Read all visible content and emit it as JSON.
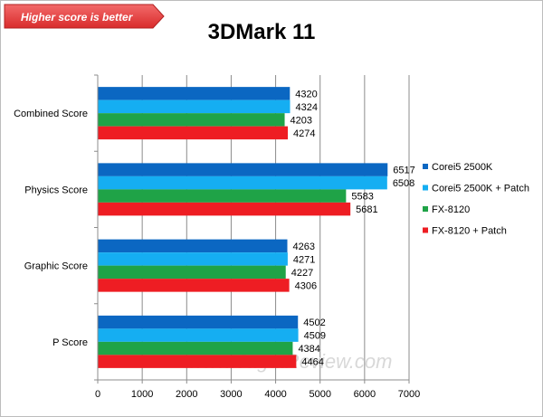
{
  "badge": {
    "text": "Higher score is better",
    "color": "#e84040"
  },
  "watermark": "www.JagatReview.com",
  "chart_data": {
    "type": "bar",
    "orientation": "horizontal",
    "title": "3DMark 11",
    "categories": [
      "Combined Score",
      "Physics Score",
      "Graphic Score",
      "P Score"
    ],
    "series": [
      {
        "name": "Corei5 2500K",
        "color": "#0b67c2",
        "values": [
          4320,
          6517,
          4263,
          4502
        ]
      },
      {
        "name": "Corei5 2500K + Patch",
        "color": "#15aef2",
        "values": [
          4324,
          6508,
          4271,
          4509
        ]
      },
      {
        "name": "FX-8120",
        "color": "#1fa347",
        "values": [
          4203,
          5583,
          4227,
          4384
        ]
      },
      {
        "name": "FX-8120 + Patch",
        "color": "#ee1d23",
        "values": [
          4274,
          5681,
          4306,
          4464
        ]
      }
    ],
    "xlim": [
      0,
      7000
    ],
    "xticks": [
      0,
      1000,
      2000,
      3000,
      4000,
      5000,
      6000,
      7000
    ],
    "grid": true,
    "legend": "right"
  }
}
